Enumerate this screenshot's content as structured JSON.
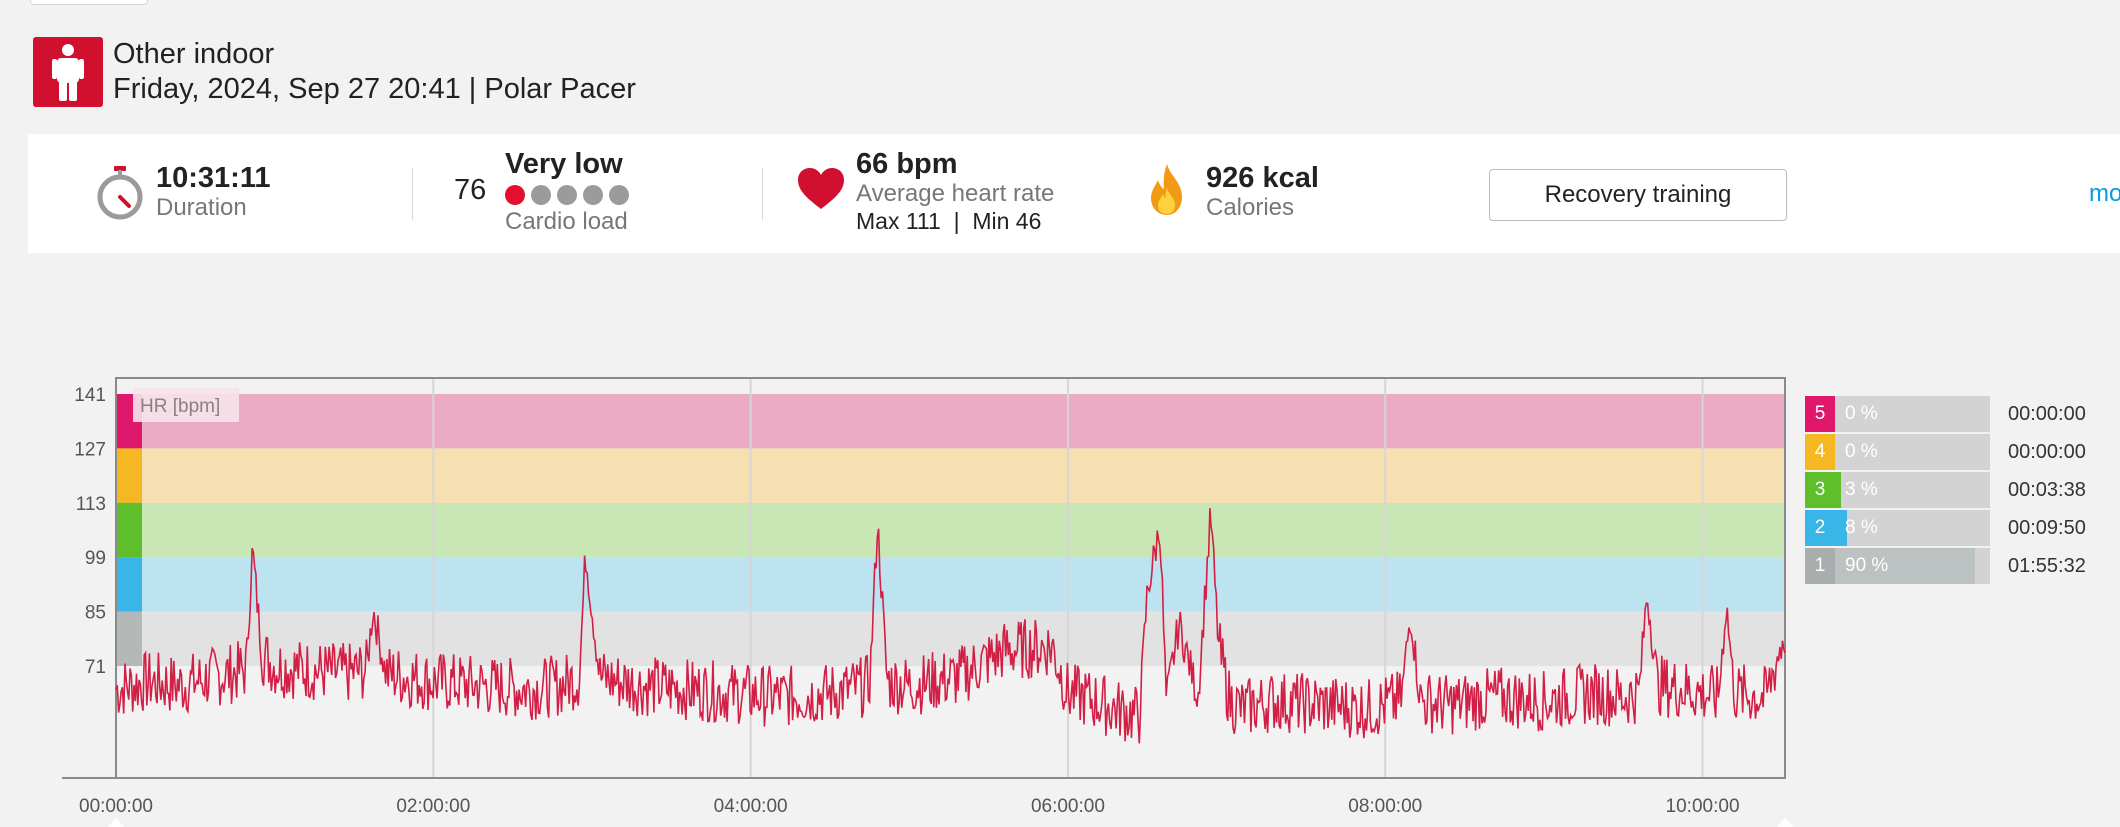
{
  "header": {
    "sport_icon": "person-standing-icon",
    "sport": "Other indoor",
    "date_device": "Friday, 2024, Sep 27 20:41 | Polar Pacer"
  },
  "summary": {
    "duration": {
      "icon": "stopwatch-icon",
      "value": "10:31:11",
      "label": "Duration"
    },
    "cardio": {
      "value": "76",
      "level": "Very low",
      "label": "Cardio load",
      "dots_filled": 1,
      "dots_total": 5
    },
    "heart": {
      "icon": "heart-icon",
      "value": "66 bpm",
      "label": "Average heart rate",
      "minmax": "Max 111  |  Min 46"
    },
    "calories": {
      "icon": "flame-icon",
      "value": "926 kcal",
      "label": "Calories"
    },
    "benefit_button": "Recovery training",
    "more_link": "mo"
  },
  "colors": {
    "brand_red": "#d0102e",
    "hr_line": "#d21f45",
    "zone5": "#e0186c",
    "zone4": "#f5b823",
    "zone3": "#5fbf2a",
    "zone2": "#39b5e8",
    "zone1": "#b4b8b8"
  },
  "chart_data": {
    "type": "line",
    "title": "",
    "ylabel": "HR [bpm]",
    "ylim": [
      51,
      141
    ],
    "y_ticks": [
      "141",
      "127",
      "113",
      "99",
      "85",
      "71"
    ],
    "x_ticks": [
      "00:00:00",
      "02:00:00",
      "04:00:00",
      "06:00:00",
      "08:00:00",
      "10:00:00"
    ],
    "xlim_seconds": [
      0,
      37871
    ],
    "zones": [
      {
        "zone": 5,
        "from": 127,
        "to": 141
      },
      {
        "zone": 4,
        "from": 113,
        "to": 127
      },
      {
        "zone": 3,
        "from": 99,
        "to": 113
      },
      {
        "zone": 2,
        "from": 85,
        "to": 99
      },
      {
        "zone": 1,
        "from": 71,
        "to": 85
      }
    ],
    "series": [
      {
        "x_hours": [
          0.0,
          0.2,
          0.4,
          0.6,
          0.82,
          0.86,
          0.92,
          1.0,
          1.2,
          1.45,
          1.58,
          1.62,
          1.7,
          2.0,
          2.3,
          2.6,
          2.8,
          2.92,
          2.96,
          3.05,
          3.3,
          3.6,
          3.9,
          4.2,
          4.5,
          4.75,
          4.8,
          4.86,
          5.0,
          5.3,
          5.6,
          5.9,
          6.0,
          6.1,
          6.3,
          6.45,
          6.5,
          6.58,
          6.62,
          6.7,
          6.82,
          6.9,
          6.95,
          7.02,
          7.1,
          7.3,
          7.6,
          7.9,
          8.1,
          8.16,
          8.22,
          8.4,
          8.7,
          9.0,
          9.3,
          9.5,
          9.6,
          9.65,
          9.72,
          9.9,
          10.1,
          10.15,
          10.2,
          10.4,
          10.52
        ],
        "y": [
          65,
          67,
          66,
          68,
          70,
          101,
          74,
          71,
          70,
          69,
          70,
          86,
          69,
          67,
          66,
          65,
          66,
          68,
          100,
          68,
          66,
          65,
          64,
          63,
          64,
          66,
          108,
          67,
          66,
          68,
          75,
          76,
          64,
          63,
          60,
          58,
          90,
          107,
          62,
          82,
          63,
          110,
          76,
          62,
          60,
          62,
          61,
          60,
          62,
          85,
          62,
          61,
          63,
          62,
          64,
          63,
          64,
          90,
          66,
          65,
          63,
          87,
          64,
          63,
          80
        ]
      }
    ]
  },
  "zones_table": [
    {
      "zone": "5",
      "pct": "0 %",
      "pct_value": 0,
      "time": "00:00:00"
    },
    {
      "zone": "4",
      "pct": "0 %",
      "pct_value": 0,
      "time": "00:00:00"
    },
    {
      "zone": "3",
      "pct": "3 %",
      "pct_value": 3,
      "time": "00:03:38"
    },
    {
      "zone": "2",
      "pct": "8 %",
      "pct_value": 8,
      "time": "00:09:50"
    },
    {
      "zone": "1",
      "pct": "90 %",
      "pct_value": 90,
      "time": "01:55:32"
    }
  ]
}
